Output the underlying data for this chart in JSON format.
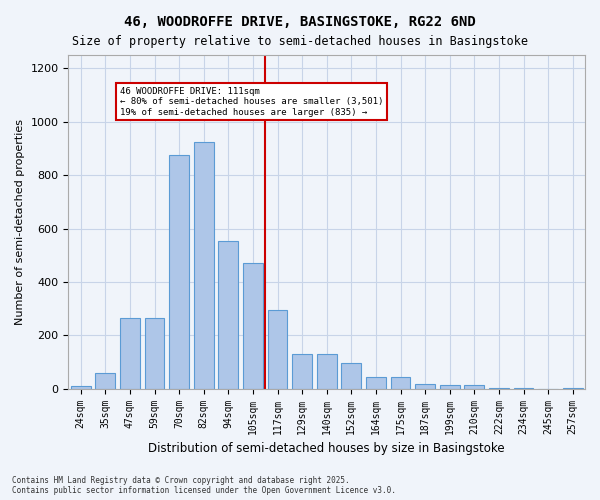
{
  "title_line1": "46, WOODROFFE DRIVE, BASINGSTOKE, RG22 6ND",
  "title_line2": "Size of property relative to semi-detached houses in Basingstoke",
  "xlabel": "Distribution of semi-detached houses by size in Basingstoke",
  "ylabel": "Number of semi-detached properties",
  "footnote": "Contains HM Land Registry data © Crown copyright and database right 2025.\nContains public sector information licensed under the Open Government Licence v3.0.",
  "bar_labels": [
    "24sqm",
    "35sqm",
    "47sqm",
    "59sqm",
    "70sqm",
    "82sqm",
    "94sqm",
    "105sqm",
    "117sqm",
    "129sqm",
    "140sqm",
    "152sqm",
    "164sqm",
    "175sqm",
    "187sqm",
    "199sqm",
    "210sqm",
    "222sqm",
    "234sqm",
    "245sqm",
    "257sqm"
  ],
  "bar_values": [
    10,
    60,
    265,
    265,
    875,
    925,
    555,
    470,
    295,
    130,
    130,
    95,
    42,
    42,
    18,
    15,
    15,
    3,
    3,
    0,
    3
  ],
  "bar_color": "#aec6e8",
  "bar_edge_color": "#5b9bd5",
  "grid_color": "#c8d4e8",
  "vline_x": 7,
  "vline_color": "#cc0000",
  "vline_label_title": "46 WOODROFFE DRIVE: 111sqm",
  "vline_label_line2": "← 80% of semi-detached houses are smaller (3,501)",
  "vline_label_line3": "19% of semi-detached houses are larger (835) →",
  "annotation_box_color": "#cc0000",
  "ylim": [
    0,
    1250
  ],
  "yticks": [
    0,
    200,
    400,
    600,
    800,
    1000,
    1200
  ],
  "bg_color": "#f0f4fa"
}
